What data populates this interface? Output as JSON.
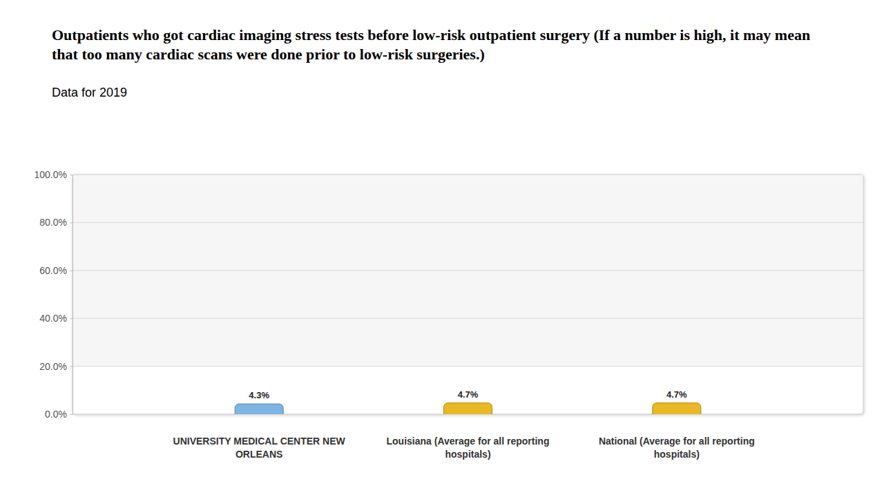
{
  "chart_data": {
    "type": "bar",
    "title": "Outpatients who got cardiac imaging stress tests before low-risk outpatient surgery (If a number is high, it may mean that too many cardiac scans were done prior to low-risk surgeries.)",
    "subtitle": "Data for 2019",
    "categories": [
      "UNIVERSITY MEDICAL CENTER NEW ORLEANS",
      "Louisiana (Average for all reporting hospitals)",
      "National (Average for all reporting hospitals)"
    ],
    "values": [
      4.3,
      4.7,
      4.7
    ],
    "value_labels": [
      "4.3%",
      "4.7%",
      "4.7%"
    ],
    "colors": [
      "#7db4e3",
      "#e9b824",
      "#e9b824"
    ],
    "ylim": [
      0,
      100
    ],
    "yticks": [
      {
        "value": 0,
        "label": "0.0%"
      },
      {
        "value": 20,
        "label": "20.0%"
      },
      {
        "value": 40,
        "label": "40.0%"
      },
      {
        "value": 60,
        "label": "60.0%"
      },
      {
        "value": 80,
        "label": "80.0%"
      },
      {
        "value": 100,
        "label": "100.0%"
      }
    ],
    "grid": true,
    "data_labels": true
  }
}
